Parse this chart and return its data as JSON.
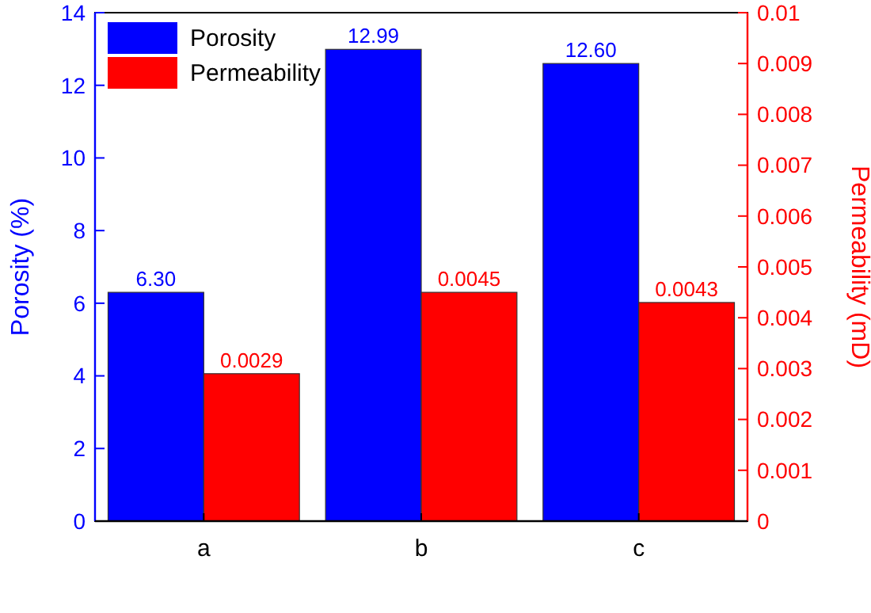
{
  "chart_data": {
    "type": "bar",
    "categories": [
      "a",
      "b",
      "c"
    ],
    "ylabel": "Porosity (%)",
    "y2label": "Permeability (mD)",
    "ylim": [
      0,
      14
    ],
    "yticks": [
      0,
      2,
      4,
      6,
      8,
      10,
      12,
      14
    ],
    "y2lim": [
      0,
      0.01
    ],
    "y2ticks": [
      0,
      0.001,
      0.002,
      0.003,
      0.004,
      0.005,
      0.006,
      0.007,
      0.008,
      0.009,
      0.01
    ],
    "legend": "top left",
    "grid": false,
    "series": [
      {
        "name": "Porosity",
        "color": "#0000ff",
        "values": [
          6.3,
          12.99,
          12.6
        ],
        "value_labels": [
          "6.30",
          "12.99",
          "12.60"
        ]
      },
      {
        "name": "Permeability",
        "color": "#ff0000",
        "axis": "y2",
        "values": [
          0.0029,
          0.0045,
          0.0043
        ],
        "value_labels": [
          "0.0029",
          "0.0045",
          "0.0043"
        ]
      }
    ]
  }
}
